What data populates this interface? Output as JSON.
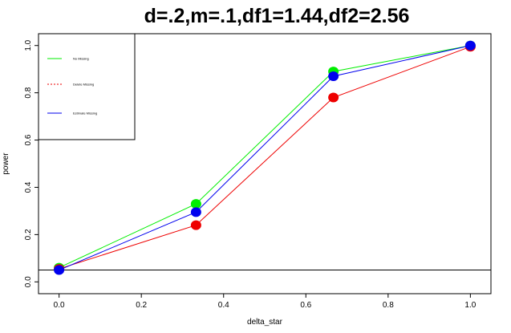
{
  "chart_data": {
    "type": "line",
    "title": "d=.2,m=.1,df1=1.44,df2=2.56",
    "xlabel": "delta_star",
    "ylabel": "power",
    "xlim": [
      -0.05,
      1.05
    ],
    "ylim": [
      -0.05,
      1.05
    ],
    "xticks": [
      "0.0",
      "0.2",
      "0.4",
      "0.6",
      "0.8",
      "1.0"
    ],
    "yticks": [
      "0.0",
      "0.2",
      "0.4",
      "0.6",
      "0.8",
      "1.0"
    ],
    "x": [
      0,
      0.333,
      0.667,
      1
    ],
    "series": [
      {
        "name": "No Missing",
        "color": "#00ee00",
        "values": [
          0.06,
          0.33,
          0.89,
          1.0
        ]
      },
      {
        "name": "Delete Missing",
        "color": "#ee0000",
        "values": [
          0.055,
          0.24,
          0.78,
          0.995
        ]
      },
      {
        "name": "Estimate Missing",
        "color": "#0000ee",
        "values": [
          0.05,
          0.295,
          0.87,
          1.0
        ]
      }
    ],
    "reference_line": {
      "y": 0.05,
      "color": "#000000"
    },
    "legend_placement": "top-left",
    "grid": false
  }
}
